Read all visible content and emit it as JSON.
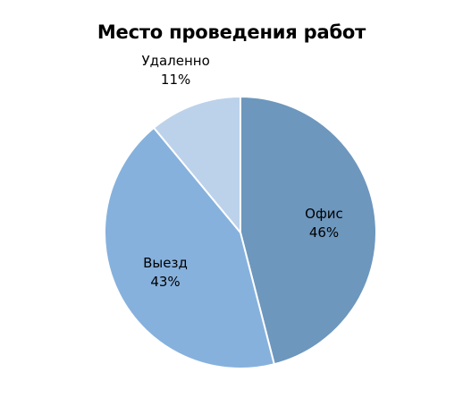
{
  "chart_data": {
    "type": "pie",
    "title": "Место проведения работ",
    "categories": [
      "Офис",
      "Выезд",
      "Удаленно"
    ],
    "values": [
      46,
      43,
      11
    ],
    "labels": [
      {
        "name": "Офис",
        "value": "46%"
      },
      {
        "name": "Выезд",
        "value": "43%"
      },
      {
        "name": "Удаленно",
        "value": "11%"
      }
    ],
    "colors": [
      "#6d97bd",
      "#86b1dd",
      "#bcd2ea"
    ],
    "start_angle_deg": 0,
    "direction": "clockwise",
    "legend": "none"
  }
}
